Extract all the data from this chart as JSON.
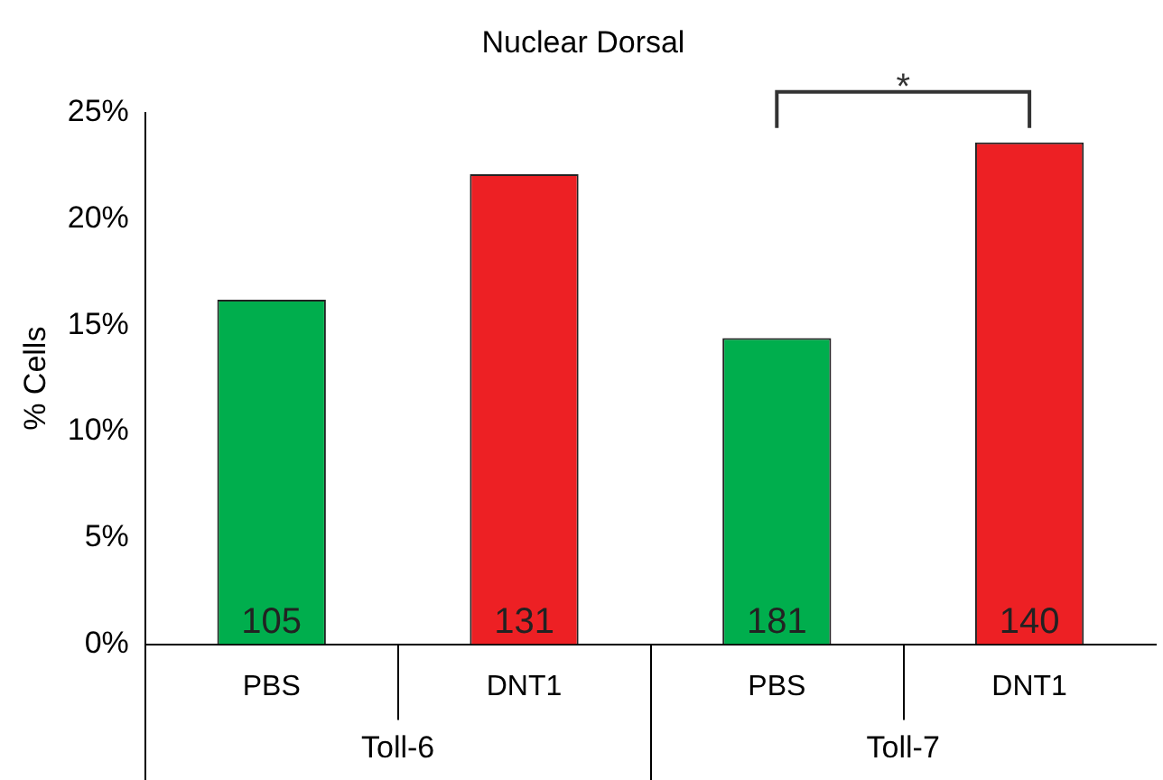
{
  "chart_data": {
    "type": "bar",
    "title": "Nuclear Dorsal",
    "ylabel": "% Cells",
    "categories": [
      "PBS",
      "DNT1",
      "PBS",
      "DNT1"
    ],
    "values": [
      16.2,
      22.1,
      14.4,
      23.6
    ],
    "colors": [
      "#00ae4d",
      "#ed2024",
      "#00ae4d",
      "#ed2024"
    ],
    "ylim": [
      0,
      25
    ],
    "yticks": [
      {
        "value": 0,
        "label": "0%"
      },
      {
        "value": 5,
        "label": "5%"
      },
      {
        "value": 10,
        "label": "10%"
      },
      {
        "value": 15,
        "label": "15%"
      },
      {
        "value": 20,
        "label": "20%"
      },
      {
        "value": 25,
        "label": "25%"
      }
    ],
    "annotations": [
      "105",
      "131",
      "181",
      "140",
      "*",
      "Toll-6",
      "Toll-7"
    ],
    "grid": false,
    "legend": false
  }
}
